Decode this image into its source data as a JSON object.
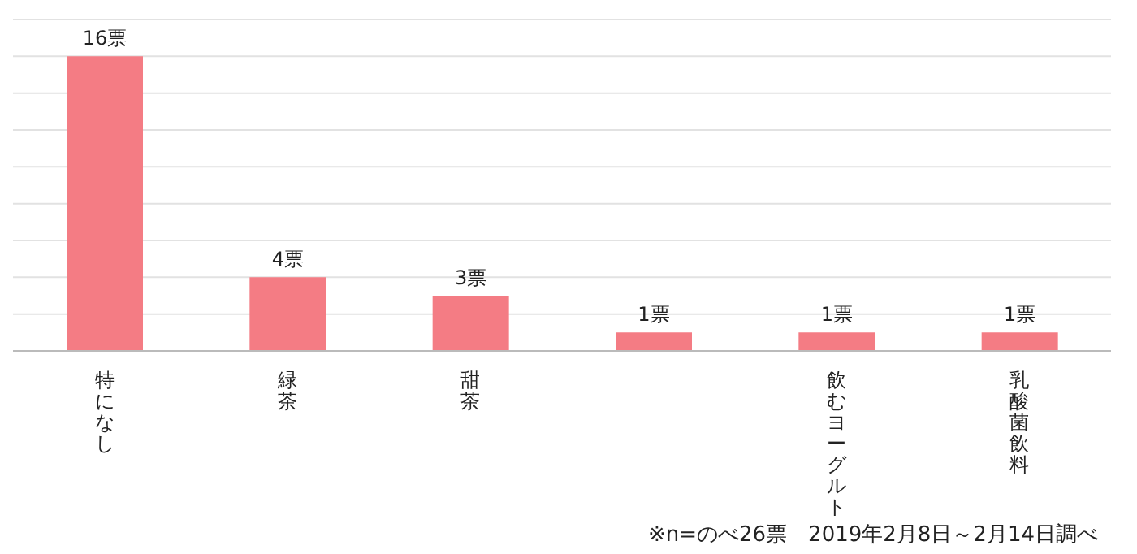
{
  "chart_data": {
    "type": "bar",
    "categories": [
      "特になし",
      "緑茶",
      "甜茶",
      null,
      "飲むヨーグルト",
      "乳酸菌飲料"
    ],
    "values": [
      16,
      4,
      3,
      1,
      1,
      1
    ],
    "value_labels": [
      "16票",
      "4票",
      "3票",
      "1票",
      "1票",
      "1票"
    ],
    "color": "#f47c84",
    "ylim": [
      0,
      18
    ],
    "yticks": [
      {
        "value": 0,
        "label": null
      },
      {
        "value": 2,
        "label": null
      },
      {
        "value": 4,
        "label": null
      },
      {
        "value": 6,
        "label": null
      },
      {
        "value": 8,
        "label": null
      },
      {
        "value": 10,
        "label": null
      },
      {
        "value": 12,
        "label": null
      },
      {
        "value": 14,
        "label": null
      },
      {
        "value": 16,
        "label": null
      },
      {
        "value": 18,
        "label": null
      }
    ],
    "grid": "y",
    "tick_labels": "x",
    "annotations": [
      "※n=のべ26票　2019年2月8日～2月14日調べ"
    ]
  }
}
